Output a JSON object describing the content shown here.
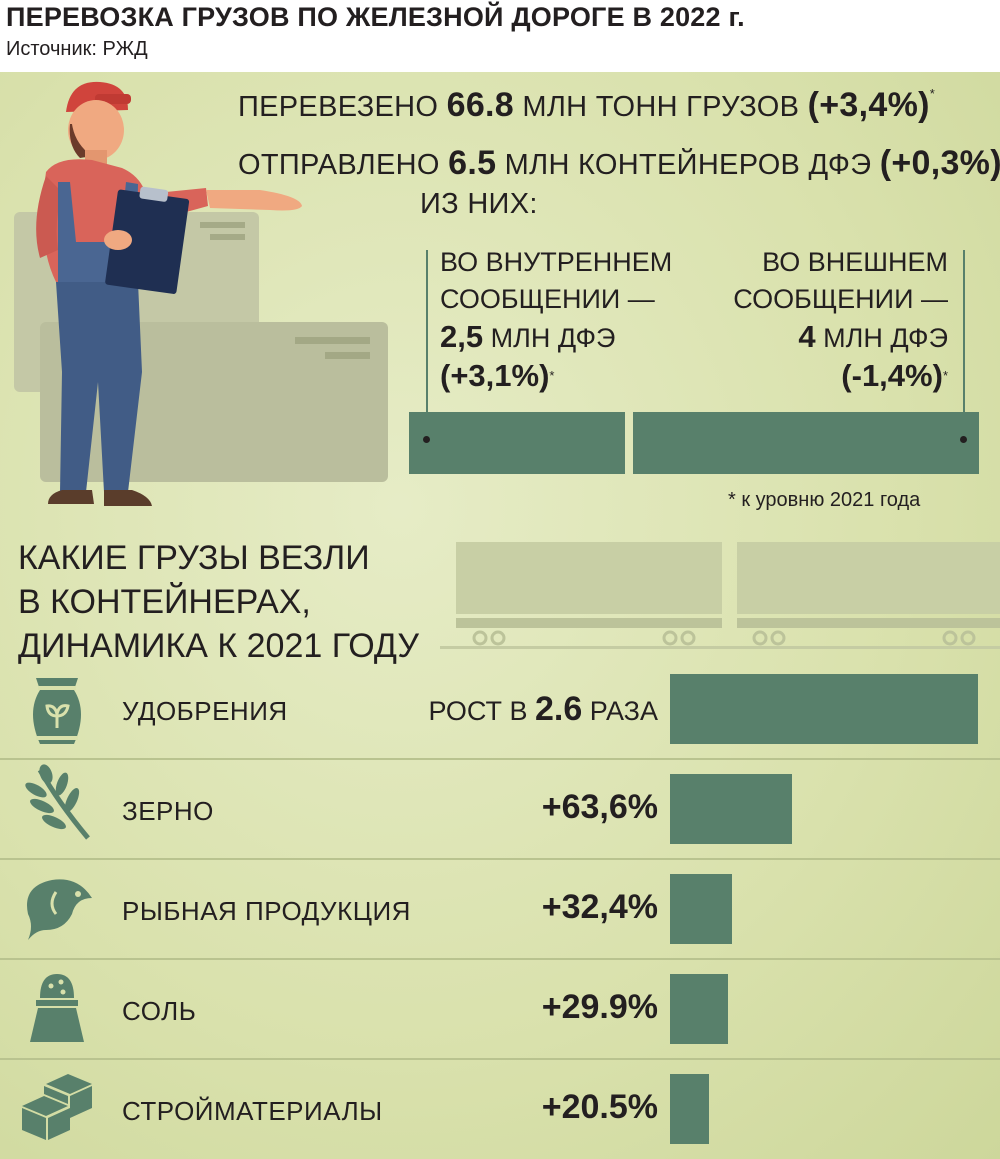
{
  "header": {
    "title": "ПЕРЕВОЗКА ГРУЗОВ ПО ЖЕЛЕЗНОЙ ДОРОГЕ В 2022 г.",
    "source": "Источник: РЖД"
  },
  "summary": {
    "line1_prefix": "ПЕРЕВЕЗЕНО",
    "line1_value": "66.8",
    "line1_unit": "МЛН ТОНН ГРУЗОВ",
    "line1_change": "(+3,4%)",
    "line2_prefix": "ОТПРАВЛЕНО",
    "line2_value": "6.5",
    "line2_unit": "МЛН КОНТЕЙНЕРОВ ДФЭ",
    "line2_change": "(+0,3%)",
    "of_which": "ИЗ НИХ:",
    "asterisk": "*"
  },
  "split": {
    "domestic_l1": "ВО ВНУТРЕННЕМ",
    "domestic_l2": "СООБЩЕНИИ —",
    "domestic_value": "2,5",
    "domestic_unit": "МЛН ДФЭ",
    "domestic_change": "(+3,1%)",
    "foreign_l1": "ВО ВНЕШНЕМ",
    "foreign_l2": "СООБЩЕНИИ —",
    "foreign_value": "4",
    "foreign_unit": "МЛН ДФЭ",
    "foreign_change": "(-1,4%)",
    "note": "* к уровню 2021 года"
  },
  "section": {
    "line1": "КАКИЕ ГРУЗЫ ВЕЗЛИ",
    "line2": "В КОНТЕЙНЕРАХ,",
    "line3": "ДИНАМИКА К 2021 ГОДУ"
  },
  "colors": {
    "bar": "#58806b",
    "background": "#d9e1ac",
    "separator": "#b9c38f"
  },
  "chart_data": [
    {
      "type": "bar",
      "categories": [
        "ВО ВНУТРЕННЕМ СООБЩЕНИИ",
        "ВО ВНЕШНЕМ СООБЩЕНИИ"
      ],
      "values": [
        2.5,
        4
      ],
      "unit": "МЛН ДФЭ",
      "changes": [
        "+3,1%",
        "-1,4%"
      ]
    },
    {
      "type": "bar",
      "orientation": "horizontal",
      "categories": [
        "УДОБРЕНИЯ",
        "ЗЕРНО",
        "РЫБНАЯ ПРОДУКЦИЯ",
        "СОЛЬ",
        "СТРОЙМАТЕРИАЛЫ"
      ],
      "values": [
        160,
        63.6,
        32.4,
        29.9,
        20.5
      ],
      "labels": [
        {
          "prefix": "РОСТ В",
          "value": "2.6",
          "suffix": "РАЗА"
        },
        {
          "prefix": "",
          "value": "+63,6%",
          "suffix": ""
        },
        {
          "prefix": "",
          "value": "+32,4%",
          "suffix": ""
        },
        {
          "prefix": "",
          "value": "+29.9%",
          "suffix": ""
        },
        {
          "prefix": "",
          "value": "+20.5%",
          "suffix": ""
        }
      ],
      "icons": [
        "fertilizer-bag-icon",
        "grain-icon",
        "fish-icon",
        "salt-shaker-icon",
        "bricks-icon"
      ]
    }
  ]
}
